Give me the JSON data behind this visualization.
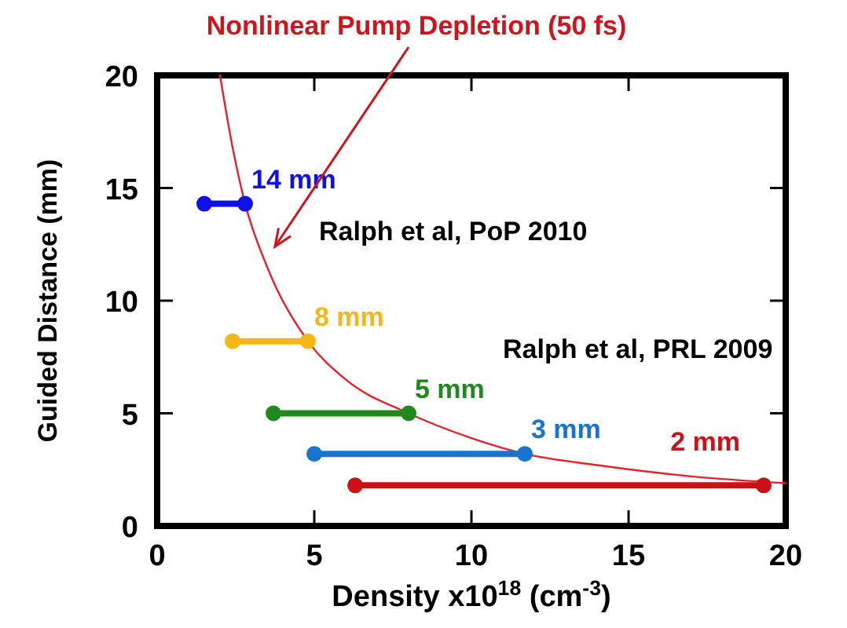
{
  "chart_data": {
    "type": "line",
    "xlabel": "Density x10$^{18}$ (cm$^{-3}$)",
    "ylabel": "Guided Distance (mm)",
    "xlim": [
      0,
      20
    ],
    "ylim": [
      0,
      20
    ],
    "xticks": [
      0,
      5,
      10,
      15,
      20
    ],
    "yticks": [
      0,
      5,
      10,
      15,
      20
    ],
    "grid": false,
    "annotations": [
      "Nonlinear Pump Depletion (50 fs)",
      "Ralph et al, PoP 2010",
      "Ralph et al, PRL 2009"
    ],
    "series": [
      {
        "color": "#e8202a",
        "marker": "none",
        "x": [
          2.0,
          2.4,
          2.8,
          3.5,
          4.8,
          6,
          8,
          10,
          11.7,
          14,
          17,
          20
        ],
        "values": [
          20,
          16.8,
          14.3,
          11.5,
          8.2,
          6.5,
          5.0,
          3.9,
          3.2,
          2.7,
          2.2,
          1.9
        ]
      },
      {
        "name": "14 mm",
        "color": "#1010e8",
        "marker": "circle",
        "x": [
          1.5,
          2.8
        ],
        "values": [
          14.3,
          14.3
        ]
      },
      {
        "name": "8 mm",
        "color": "#f5b716",
        "marker": "circle",
        "x": [
          2.4,
          4.8
        ],
        "values": [
          8.2,
          8.2
        ]
      },
      {
        "name": "5 mm",
        "color": "#1e8a1e",
        "marker": "circle",
        "x": [
          3.7,
          8.0
        ],
        "values": [
          5.0,
          5.0
        ]
      },
      {
        "name": "3 mm",
        "color": "#1874cc",
        "marker": "circle",
        "x": [
          5.0,
          11.7
        ],
        "values": [
          3.2,
          3.2
        ]
      },
      {
        "name": "2 mm",
        "color": "#cc1018",
        "marker": "circle",
        "x": [
          6.3,
          19.3
        ],
        "values": [
          1.8,
          1.8
        ]
      }
    ]
  }
}
